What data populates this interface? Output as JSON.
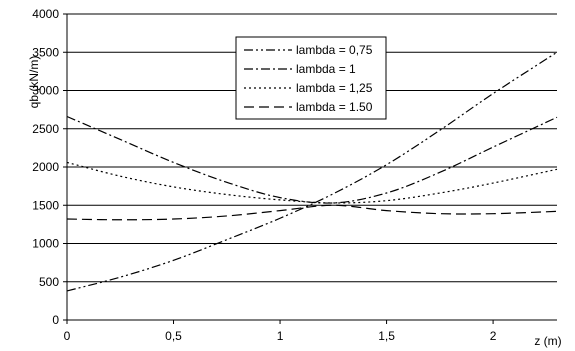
{
  "chart_data": {
    "type": "line",
    "title": "",
    "xlabel": "z (m)",
    "ylabel": "qb (kN/m)",
    "xlim": [
      0,
      2.3
    ],
    "ylim": [
      0,
      4000
    ],
    "x_ticks": [
      0,
      0.5,
      1,
      1.5,
      2
    ],
    "x_tick_labels": [
      "0",
      "0,5",
      "1",
      "1,5",
      "2"
    ],
    "y_ticks": [
      0,
      500,
      1000,
      1500,
      2000,
      2500,
      3000,
      3500,
      4000
    ],
    "y_tick_labels": [
      "0",
      "500",
      "1000",
      "1500",
      "2000",
      "2500",
      "3000",
      "3500",
      "4000"
    ],
    "grid": "horizontal",
    "legend_position": "top-center",
    "x": [
      0,
      0.25,
      0.5,
      0.75,
      1.0,
      1.25,
      1.5,
      1.75,
      2.0,
      2.3
    ],
    "series": [
      {
        "name": "lambda = 0,75",
        "dash": "9,3,2,3,2,3",
        "values": [
          380,
          560,
          780,
          1050,
          1330,
          1650,
          2030,
          2480,
          2960,
          3500
        ]
      },
      {
        "name": "lambda = 1",
        "dash": "9,3,2,3",
        "values": [
          2660,
          2360,
          2060,
          1800,
          1600,
          1530,
          1660,
          1930,
          2260,
          2650
        ]
      },
      {
        "name": "lambda = 1,25",
        "dash": "2,3",
        "values": [
          2060,
          1880,
          1740,
          1640,
          1570,
          1530,
          1560,
          1660,
          1790,
          1970
        ]
      },
      {
        "name": "lambda = 1.50",
        "dash": "10,5",
        "values": [
          1320,
          1310,
          1320,
          1360,
          1430,
          1500,
          1430,
          1390,
          1390,
          1420
        ]
      }
    ]
  }
}
